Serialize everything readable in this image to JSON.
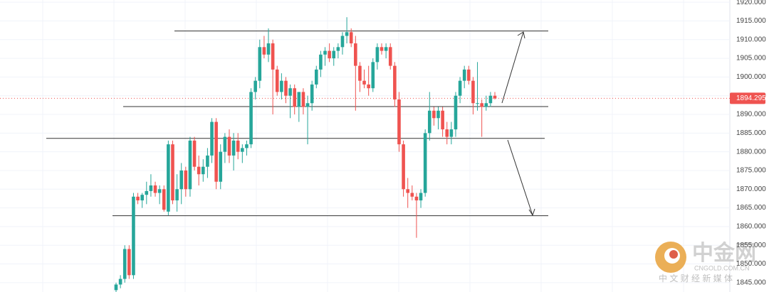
{
  "chart_data": {
    "type": "candlestick",
    "open": [
      1843,
      1844.5,
      1846,
      1854,
      1847,
      1868,
      1867,
      1868.5,
      1869.5,
      1871,
      1869,
      1870,
      1864,
      1882,
      1867,
      1870,
      1875,
      1870,
      1883,
      1876,
      1874,
      1876,
      1879,
      1888,
      1872,
      1880,
      1884,
      1879,
      1883,
      1880,
      1881,
      1882,
      1896,
      1899,
      1908,
      1906,
      1909,
      1902,
      1896,
      1899,
      1895,
      1897,
      1892,
      1896,
      1892,
      1893,
      1898,
      1902,
      1906,
      1907,
      1905,
      1907,
      1908,
      1911,
      1912,
      1909,
      1903,
      1899,
      1898,
      1897,
      1904,
      1908,
      1907,
      1908,
      1903,
      1894,
      1882,
      1870,
      1869,
      1868,
      1867,
      1869,
      1885,
      1891,
      1889,
      1891,
      1886,
      1884,
      1886,
      1895,
      1899,
      1902,
      1899,
      1893,
      1893,
      1892,
      1893,
      1895
    ],
    "high": [
      1845,
      1847,
      1855,
      1855,
      1869,
      1869,
      1869,
      1872,
      1874,
      1872,
      1871,
      1871,
      1883,
      1883,
      1874,
      1877,
      1876,
      1884,
      1884,
      1879,
      1878,
      1881,
      1889,
      1889,
      1882,
      1885,
      1886,
      1885,
      1885,
      1882,
      1883,
      1897,
      1900,
      1910,
      1911,
      1913,
      1910,
      1903,
      1901,
      1900,
      1898,
      1898,
      1896,
      1897,
      1895,
      1899,
      1903,
      1907,
      1908,
      1909,
      1908,
      1909,
      1912,
      1916,
      1913,
      1911,
      1904,
      1902,
      1903,
      1905,
      1909,
      1909,
      1909,
      1909,
      1904,
      1896,
      1883,
      1873,
      1871,
      1869,
      1870,
      1886,
      1896,
      1892,
      1892,
      1892,
      1888,
      1888,
      1896,
      1900,
      1903,
      1903,
      1900,
      1904,
      1894,
      1895,
      1896,
      1896
    ],
    "low": [
      1842.5,
      1843.5,
      1845,
      1846,
      1846,
      1866,
      1865,
      1866,
      1868,
      1868,
      1866,
      1864,
      1863,
      1866,
      1864,
      1866,
      1868,
      1868,
      1875,
      1871,
      1872,
      1873,
      1877,
      1870,
      1870,
      1877,
      1877,
      1875,
      1878,
      1877,
      1879,
      1881,
      1894,
      1897,
      1905,
      1904,
      1890,
      1895,
      1894,
      1893,
      1889,
      1890,
      1888,
      1890,
      1882,
      1891,
      1897,
      1900,
      1903,
      1904,
      1903,
      1905,
      1906,
      1909,
      1908,
      1891,
      1896,
      1897,
      1895,
      1896,
      1902,
      1906,
      1905,
      1902,
      1892,
      1880,
      1868,
      1865,
      1867,
      1857,
      1865,
      1868,
      1883,
      1887,
      1886,
      1884,
      1882,
      1882,
      1884,
      1893,
      1897,
      1898,
      1890,
      1891,
      1884,
      1891,
      1892,
      1894
    ],
    "close": [
      1844.5,
      1846,
      1854,
      1847,
      1868,
      1867,
      1868.5,
      1869.5,
      1871,
      1869,
      1870,
      1864.5,
      1882,
      1867,
      1870,
      1875,
      1870,
      1883,
      1876,
      1874,
      1876,
      1879,
      1888,
      1872,
      1880,
      1884,
      1879,
      1883,
      1880,
      1881,
      1882,
      1896,
      1899,
      1908,
      1906,
      1909,
      1902,
      1896,
      1899,
      1895,
      1897,
      1892,
      1896,
      1892,
      1893,
      1898,
      1902,
      1906,
      1907,
      1905,
      1907,
      1908,
      1911,
      1912,
      1909,
      1903,
      1899,
      1898,
      1897,
      1904,
      1908,
      1907,
      1908,
      1903,
      1894,
      1882,
      1870,
      1869,
      1868,
      1867,
      1869,
      1885,
      1891,
      1889,
      1891,
      1886,
      1884,
      1886,
      1895,
      1899,
      1902,
      1899,
      1893,
      1893,
      1892,
      1893,
      1895,
      1894.295
    ],
    "up_color": "#26a69a",
    "down_color": "#ef5350",
    "ylim": [
      1842.5,
      1920.6
    ],
    "yticks": [
      {
        "value": 1845,
        "label": "1845.000"
      },
      {
        "value": 1850,
        "label": "1850.000"
      },
      {
        "value": 1855,
        "label": "1855.000"
      },
      {
        "value": 1860,
        "label": "1860.000"
      },
      {
        "value": 1865,
        "label": "1865.000"
      },
      {
        "value": 1870,
        "label": "1870.000"
      },
      {
        "value": 1875,
        "label": "1875.000"
      },
      {
        "value": 1880,
        "label": "1880.000"
      },
      {
        "value": 1885,
        "label": "1885.000"
      },
      {
        "value": 1890,
        "label": "1890.000"
      },
      {
        "value": 1895,
        "label": "1895.000"
      },
      {
        "value": 1900,
        "label": "1900.000"
      },
      {
        "value": 1905,
        "label": "1905.000"
      },
      {
        "value": 1910,
        "label": "1910.000"
      },
      {
        "value": 1915,
        "label": "1915.000"
      },
      {
        "value": 1920,
        "label": "1920.000"
      }
    ],
    "grid": true,
    "last_price": 1894.295,
    "levels": [
      1912.3,
      1892.1,
      1883.6,
      1862.9
    ]
  },
  "watermark": {
    "name": "中金网",
    "domain": "CNGOLD.COM.CN",
    "tagline": "中 文 财 经 新 媒 体"
  }
}
